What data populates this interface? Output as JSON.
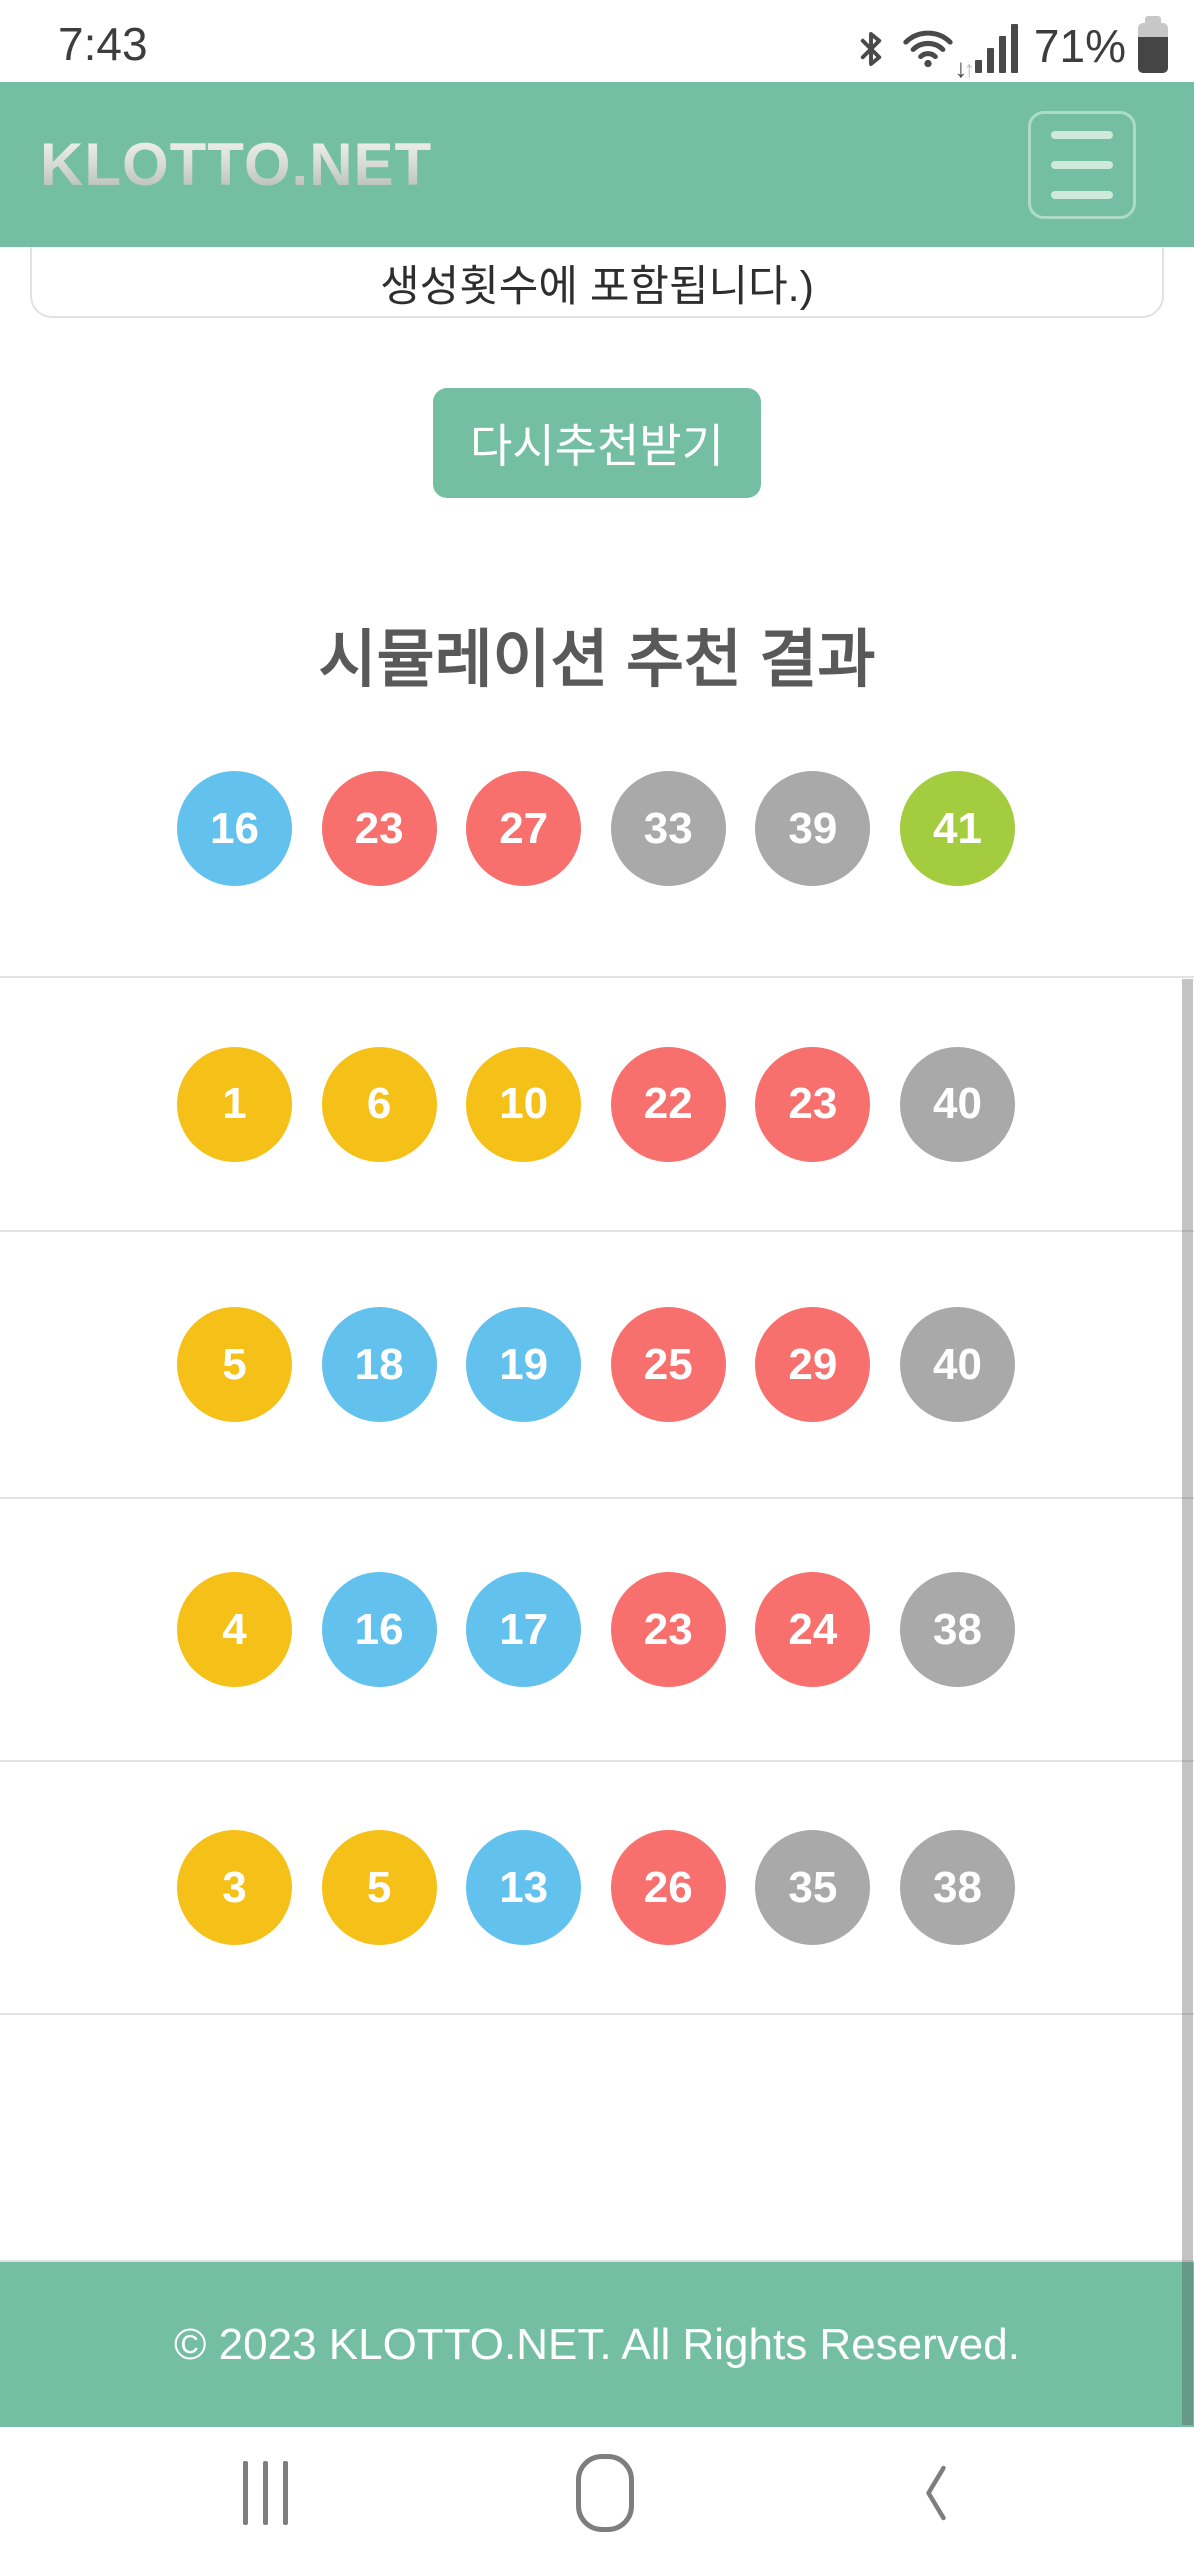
{
  "status_bar": {
    "time": "7:43",
    "battery_percent": "71%",
    "icons": [
      "bluetooth-icon",
      "wifi-icon",
      "signal-strength-icon",
      "battery-icon"
    ]
  },
  "header": {
    "logo": "KLOTTO.NET",
    "menu_icon": "hamburger-menu-icon"
  },
  "notice": {
    "text": "생성횟수에 포함됩니다.)"
  },
  "actions": {
    "refresh_button": "다시추천받기"
  },
  "results": {
    "title": "시뮬레이션 추천 결과",
    "main_numbers": [
      {
        "value": "16",
        "color": "blue"
      },
      {
        "value": "23",
        "color": "red"
      },
      {
        "value": "27",
        "color": "red"
      },
      {
        "value": "33",
        "color": "gray"
      },
      {
        "value": "39",
        "color": "gray"
      },
      {
        "value": "41",
        "color": "green"
      }
    ],
    "simulation_rows": [
      {
        "numbers": [
          {
            "value": "1",
            "color": "yellow"
          },
          {
            "value": "6",
            "color": "yellow"
          },
          {
            "value": "10",
            "color": "yellow"
          },
          {
            "value": "22",
            "color": "red"
          },
          {
            "value": "23",
            "color": "red"
          },
          {
            "value": "40",
            "color": "gray"
          }
        ]
      },
      {
        "numbers": [
          {
            "value": "5",
            "color": "yellow"
          },
          {
            "value": "18",
            "color": "blue"
          },
          {
            "value": "19",
            "color": "blue"
          },
          {
            "value": "25",
            "color": "red"
          },
          {
            "value": "29",
            "color": "red"
          },
          {
            "value": "40",
            "color": "gray"
          }
        ]
      },
      {
        "numbers": [
          {
            "value": "4",
            "color": "yellow"
          },
          {
            "value": "16",
            "color": "blue"
          },
          {
            "value": "17",
            "color": "blue"
          },
          {
            "value": "23",
            "color": "red"
          },
          {
            "value": "24",
            "color": "red"
          },
          {
            "value": "38",
            "color": "gray"
          }
        ]
      },
      {
        "numbers": [
          {
            "value": "3",
            "color": "yellow"
          },
          {
            "value": "5",
            "color": "yellow"
          },
          {
            "value": "13",
            "color": "blue"
          },
          {
            "value": "26",
            "color": "red"
          },
          {
            "value": "35",
            "color": "gray"
          },
          {
            "value": "38",
            "color": "gray"
          }
        ]
      }
    ]
  },
  "footer": {
    "copyright": "© 2023 KLOTTO.NET. All Rights Reserved."
  },
  "nav_bar": {
    "icons": [
      "recents-icon",
      "home-icon",
      "back-icon"
    ]
  },
  "colors": {
    "brand_green": "#74bfa3",
    "ball_yellow": "#f5c118",
    "ball_blue": "#63c1ee",
    "ball_red": "#f8706e",
    "ball_gray": "#a9a9a9",
    "ball_green": "#a4cc3f"
  }
}
